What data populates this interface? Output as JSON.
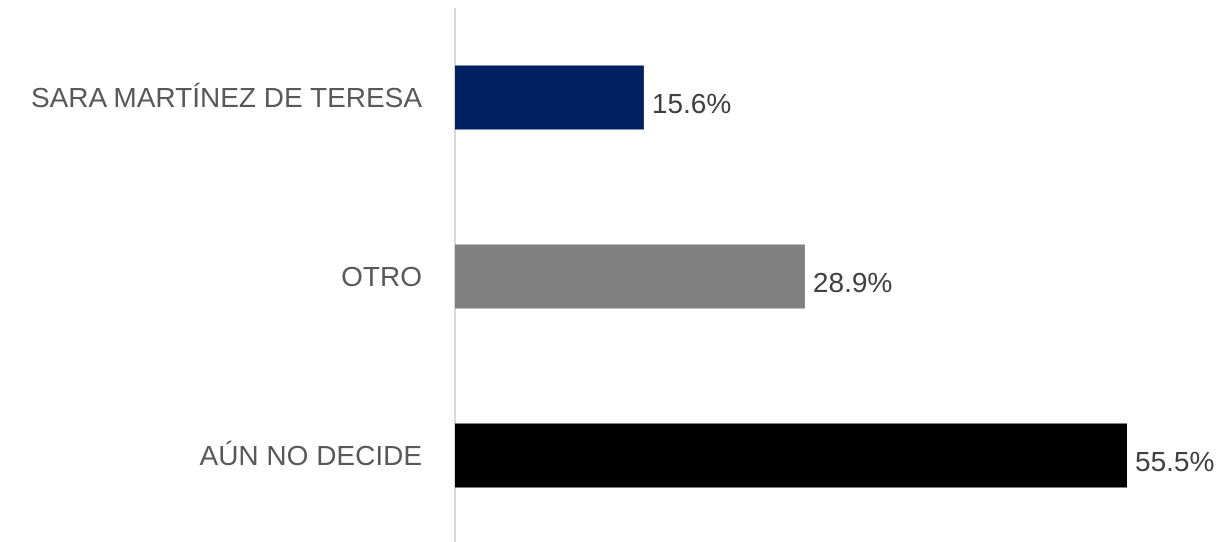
{
  "chart_data": {
    "type": "bar",
    "orientation": "horizontal",
    "categories": [
      "SARA MARTÍNEZ DE TERESA",
      "OTRO",
      "AÚN NO DECIDE"
    ],
    "values": [
      15.6,
      28.9,
      55.5
    ],
    "value_labels": [
      "15.6%",
      "28.9%",
      "55.5%"
    ],
    "colors": [
      "#002060",
      "#808080",
      "#000000"
    ],
    "xlim": [
      0,
      55.5
    ],
    "grid": false,
    "legend": "none",
    "axis_line_color": "#d9d9d9"
  }
}
